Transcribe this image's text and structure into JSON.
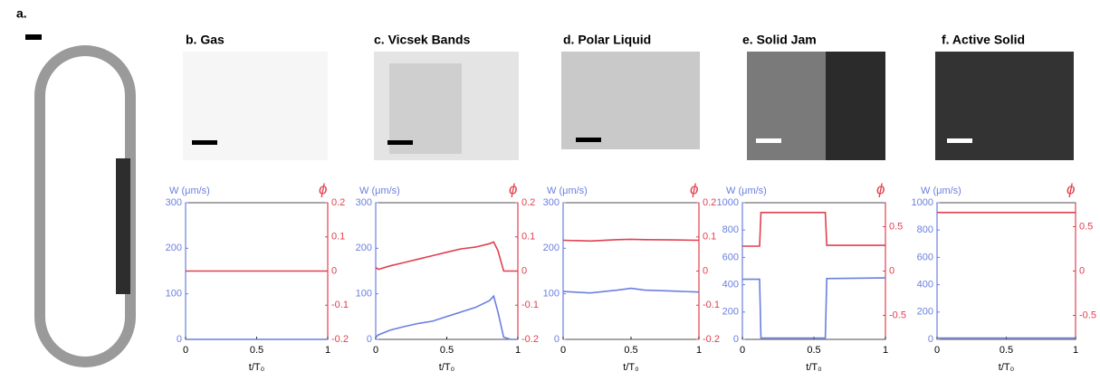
{
  "panel_a": {
    "label": "a."
  },
  "chart_data": [
    {
      "type": "line",
      "title": "b. Gas",
      "ylabel": "W (μm/s)",
      "y2label": "ϕ",
      "xlabel": "t/T₀",
      "x": [
        0,
        1
      ],
      "xlim": [
        0,
        1
      ],
      "xticks": [
        0,
        0.5,
        1
      ],
      "ylim": [
        0,
        300
      ],
      "yticks": [
        0,
        100,
        200,
        300
      ],
      "y2lim": [
        -0.2,
        0.2
      ],
      "y2ticks": [
        -0.2,
        -0.1,
        0,
        0.1,
        0.2
      ],
      "series": [
        {
          "color": "#6a7fe0",
          "values": [
            0,
            0
          ]
        },
        {
          "color": "#e0404f",
          "axis": "y2",
          "values": [
            0,
            0
          ]
        }
      ]
    },
    {
      "type": "line",
      "title": "c. Vicsek Bands",
      "ylabel": "W (μm/s)",
      "y2label": "ϕ",
      "xlabel": "t/T₀",
      "x": [
        0,
        0.02,
        0.1,
        0.2,
        0.3,
        0.4,
        0.5,
        0.6,
        0.7,
        0.8,
        0.83,
        0.86,
        0.9,
        0.95,
        1
      ],
      "xlim": [
        0,
        1
      ],
      "xticks": [
        0,
        0.5,
        1
      ],
      "ylim": [
        0,
        300
      ],
      "yticks": [
        0,
        100,
        200,
        300
      ],
      "y2lim": [
        -0.2,
        0.2
      ],
      "y2ticks": [
        -0.2,
        -0.1,
        0,
        0.1,
        0.2
      ],
      "series": [
        {
          "color": "#6a7fe0",
          "values": [
            5,
            10,
            20,
            28,
            35,
            40,
            50,
            60,
            70,
            85,
            95,
            60,
            5,
            0,
            0
          ]
        },
        {
          "color": "#e0404f",
          "axis": "y2",
          "values": [
            0.01,
            0.005,
            0.015,
            0.025,
            0.035,
            0.045,
            0.055,
            0.065,
            0.07,
            0.08,
            0.085,
            0.06,
            0,
            0,
            0
          ]
        }
      ]
    },
    {
      "type": "line",
      "title": "d. Polar Liquid",
      "ylabel": "W (μm/s)",
      "y2label": "ϕ",
      "xlabel": "t/T₀",
      "x": [
        0,
        0.2,
        0.4,
        0.5,
        0.6,
        0.8,
        1
      ],
      "xlim": [
        0,
        1
      ],
      "xticks": [
        0,
        0.5,
        1
      ],
      "ylim": [
        0,
        300
      ],
      "yticks": [
        0,
        100,
        200,
        300
      ],
      "y2lim": [
        -0.2,
        0.2
      ],
      "y2ticks": [
        -0.2,
        -0.1,
        0,
        0.1,
        0.2
      ],
      "series": [
        {
          "color": "#6a7fe0",
          "values": [
            105,
            102,
            108,
            112,
            108,
            106,
            104
          ]
        },
        {
          "color": "#e0404f",
          "axis": "y2",
          "values": [
            0.09,
            0.088,
            0.092,
            0.093,
            0.092,
            0.091,
            0.09
          ]
        }
      ]
    },
    {
      "type": "line",
      "title": "e. Solid Jam",
      "ylabel": "W (μm/s)",
      "y2label": "ϕ",
      "xlabel": "t/T₀",
      "x": [
        0,
        0.12,
        0.13,
        0.58,
        0.59,
        1
      ],
      "xlim": [
        0,
        1
      ],
      "xticks": [
        0,
        0.5,
        1
      ],
      "ylim": [
        0,
        1000
      ],
      "yticks": [
        0,
        200,
        400,
        600,
        800,
        1000
      ],
      "y2lim": [
        -0.77,
        0.77
      ],
      "y2ticks": [
        -0.5,
        0,
        0.5
      ],
      "series": [
        {
          "color": "#6a7fe0",
          "values": [
            440,
            440,
            10,
            10,
            445,
            450
          ]
        },
        {
          "color": "#e0404f",
          "axis": "y2",
          "values": [
            0.28,
            0.28,
            0.66,
            0.66,
            0.29,
            0.29
          ]
        }
      ]
    },
    {
      "type": "line",
      "title": "f. Active Solid",
      "ylabel": "W (μm/s)",
      "y2label": "ϕ",
      "xlabel": "t/T₀",
      "x": [
        0,
        1
      ],
      "xlim": [
        0,
        1
      ],
      "xticks": [
        0,
        0.5,
        1
      ],
      "ylim": [
        0,
        1000
      ],
      "yticks": [
        0,
        200,
        400,
        600,
        800,
        1000
      ],
      "y2lim": [
        -0.77,
        0.77
      ],
      "y2ticks": [
        -0.5,
        0,
        0.5
      ],
      "series": [
        {
          "color": "#6a7fe0",
          "values": [
            10,
            10
          ]
        },
        {
          "color": "#e0404f",
          "axis": "y2",
          "values": [
            0.66,
            0.66
          ]
        }
      ]
    }
  ]
}
